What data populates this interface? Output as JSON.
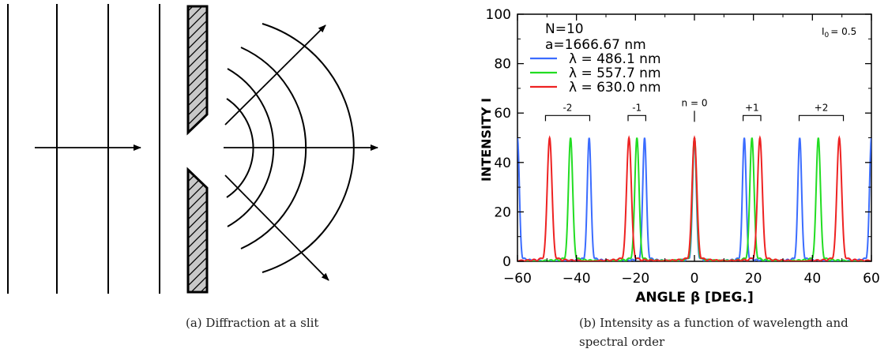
{
  "figure_a": {
    "caption": "(a) Diffraction at a slit"
  },
  "figure_b": {
    "caption": "(b) Intensity as a function of wavelength and spectral order"
  },
  "chart_data": {
    "type": "line",
    "xlabel": "ANGLE β [DEG.]",
    "ylabel": "INTENSITY I",
    "xlim": [
      -60,
      60
    ],
    "ylim": [
      0,
      100
    ],
    "xticks": [
      "-60",
      "-40",
      "-20",
      "0",
      "20",
      "40",
      "60"
    ],
    "yticks": [
      "0",
      "20",
      "40",
      "60",
      "80",
      "100"
    ],
    "annotations": {
      "N": "N=10",
      "a": "a=1666.67 nm",
      "I0": "I",
      "I0_sub": "0",
      "I0_val": "= 0.5"
    },
    "orders": [
      {
        "label": "-2",
        "x_from": -50.5,
        "x_to": -35.5
      },
      {
        "label": "-1",
        "x_from": -22.5,
        "x_to": -16.5
      },
      {
        "label": "n = 0",
        "x_from": 0,
        "x_to": 0
      },
      {
        "label": "+1",
        "x_from": 16.5,
        "x_to": 22.5
      },
      {
        "label": "+2",
        "x_from": 35.5,
        "x_to": 50.5
      }
    ],
    "series": [
      {
        "name": "λ = 486.1 nm",
        "color": "#3b6cff",
        "peaks": [
          -60,
          -35.7,
          -16.9,
          0,
          16.9,
          35.7,
          60
        ],
        "peak_value": 50
      },
      {
        "name": "λ = 557.7 nm",
        "color": "#22dd22",
        "peaks": [
          -42.0,
          -19.5,
          0,
          19.5,
          42.0
        ],
        "peak_value": 50
      },
      {
        "name": "λ = 630.0 nm",
        "color": "#ee2222",
        "peaks": [
          -49.1,
          -22.2,
          0,
          22.2,
          49.1
        ],
        "peak_value": 50
      }
    ]
  }
}
